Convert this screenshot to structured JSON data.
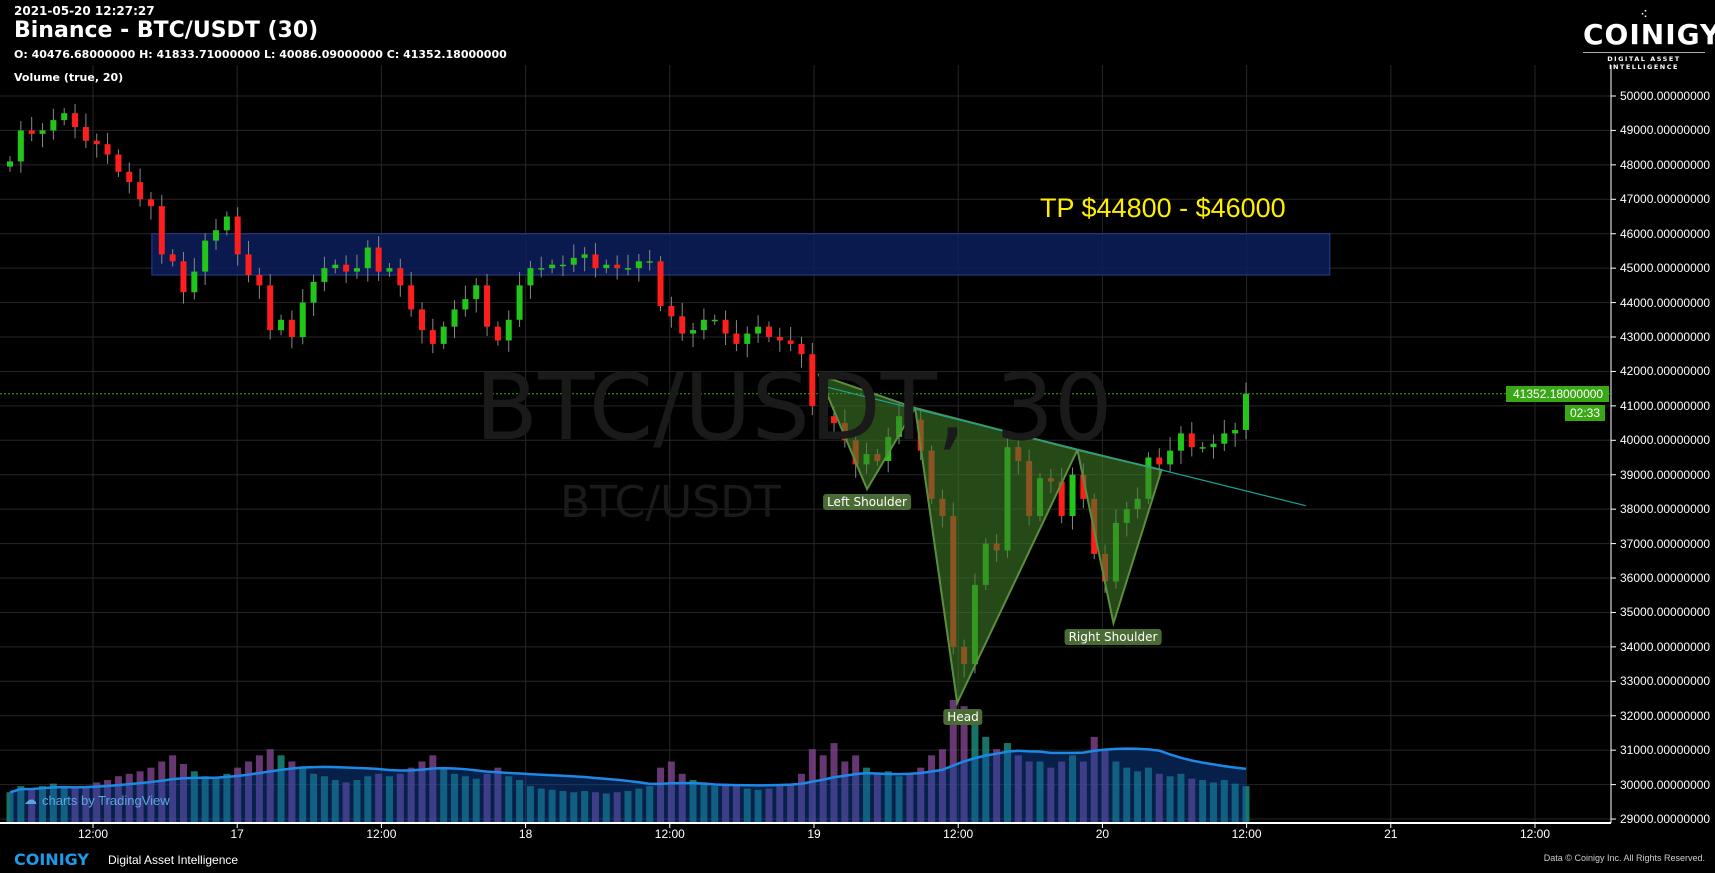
{
  "header": {
    "timestamp": "2021-05-20 12:27:27",
    "title": "Binance - BTC/USDT (30)",
    "ohlc": "O: 40476.68000000 H: 41833.71000000 L: 40086.09000000 C: 41352.18000000",
    "volume_indicator": "Volume (true, 20)"
  },
  "logo": {
    "name": "COINIGY",
    "tagline": "DIGITAL ASSET INTELLIGENCE"
  },
  "watermark": {
    "main": "BTC/USDT, 30",
    "sub": "BTC/USDT"
  },
  "price_axis": {
    "labels": [
      "50000.00000000",
      "49000.00000000",
      "48000.00000000",
      "47000.00000000",
      "46000.00000000",
      "45000.00000000",
      "44000.00000000",
      "43000.00000000",
      "42000.00000000",
      "41000.00000000",
      "40000.00000000",
      "39000.00000000",
      "38000.00000000",
      "37000.00000000",
      "36000.00000000",
      "35000.00000000",
      "34000.00000000",
      "33000.00000000",
      "32000.00000000",
      "31000.00000000",
      "30000.00000000",
      "29000.00000000"
    ],
    "current_price": "41352.18000000",
    "countdown": "02:33"
  },
  "time_axis": {
    "labels": [
      "12:00",
      "17",
      "12:00",
      "18",
      "12:00",
      "19",
      "12:00",
      "20",
      "12:00",
      "21",
      "12:00"
    ]
  },
  "colors": {
    "up": "#22c51a",
    "down": "#ff1e1e",
    "zone": "#0d1f5c",
    "pattern": "#3d7a26",
    "neckline": "#1aa39a",
    "tp_text": "#ffee00",
    "price_tag": "#3aa816",
    "volume_ma": "#1e88e5"
  },
  "annotations": {
    "tp_text": "TP $44800 - $46000",
    "zone": {
      "from": "2021-05-16 17:00",
      "to": "2021-05-20 19:00",
      "low": 44800,
      "high": 46000
    },
    "neckline": {
      "from": [
        "2021-05-19 00:30",
        41600
      ],
      "to": [
        "2021-05-20 17:00",
        38100
      ]
    },
    "left_shoulder": {
      "label": "Left Shoulder",
      "points": [
        [
          "2021-05-19 00:30",
          41900
        ],
        [
          "2021-05-19 04:30",
          38580
        ],
        [
          "2021-05-19 08:30",
          40940
        ]
      ]
    },
    "head": {
      "label": "Head",
      "points": [
        [
          "2021-05-19 08:30",
          40940
        ],
        [
          "2021-05-19 12:00",
          32370
        ],
        [
          "2021-05-19 22:00",
          39720
        ]
      ]
    },
    "right_shoulder": {
      "label": "Right Shoulder",
      "points": [
        [
          "2021-05-19 22:00",
          39720
        ],
        [
          "2021-05-20 01:00",
          34690
        ],
        [
          "2021-05-20 05:00",
          39140
        ]
      ]
    }
  },
  "chart_data": {
    "type": "candlestick",
    "symbol": "BTC/USDT",
    "interval": "30",
    "ylim": [
      29000,
      50000
    ],
    "closes": [
      48100,
      49000,
      48900,
      49000,
      49300,
      49500,
      49100,
      48700,
      48600,
      48300,
      47800,
      47500,
      47000,
      46800,
      45400,
      45200,
      44300,
      44900,
      45800,
      46100,
      46500,
      45400,
      44800,
      44500,
      43200,
      43500,
      43000,
      44000,
      44600,
      45000,
      45100,
      44900,
      45000,
      45600,
      44900,
      45000,
      44500,
      43800,
      43200,
      42800,
      43300,
      43800,
      44100,
      44500,
      43300,
      42900,
      43500,
      44500,
      45000,
      45000,
      45100,
      45100,
      45300,
      45400,
      45000,
      45100,
      45000,
      45000,
      45200,
      45200,
      43900,
      43600,
      43100,
      43200,
      43500,
      43500,
      43100,
      42800,
      43100,
      43300,
      43000,
      42900,
      42800,
      42500,
      41000,
      40700,
      40500,
      40000,
      39300,
      39600,
      39400,
      40100,
      40700,
      40600,
      39700,
      38300,
      37800,
      34000,
      33500,
      35800,
      37000,
      36800,
      39800,
      39400,
      37800,
      38900,
      38800,
      37800,
      39000,
      38300,
      36700,
      35900,
      37600,
      38000,
      38300,
      39500,
      39300,
      39700,
      40200,
      39800,
      39800,
      39900,
      40200,
      40300,
      41352
    ],
    "volume_relative": [
      0.25,
      0.3,
      0.28,
      0.3,
      0.32,
      0.3,
      0.28,
      0.3,
      0.33,
      0.35,
      0.38,
      0.4,
      0.42,
      0.45,
      0.5,
      0.55,
      0.48,
      0.42,
      0.38,
      0.36,
      0.4,
      0.45,
      0.5,
      0.55,
      0.6,
      0.55,
      0.5,
      0.45,
      0.4,
      0.38,
      0.35,
      0.33,
      0.35,
      0.38,
      0.4,
      0.38,
      0.4,
      0.45,
      0.5,
      0.55,
      0.45,
      0.4,
      0.38,
      0.36,
      0.4,
      0.45,
      0.38,
      0.35,
      0.3,
      0.28,
      0.27,
      0.26,
      0.25,
      0.26,
      0.25,
      0.24,
      0.25,
      0.26,
      0.28,
      0.3,
      0.45,
      0.5,
      0.4,
      0.35,
      0.33,
      0.3,
      0.32,
      0.3,
      0.28,
      0.27,
      0.28,
      0.3,
      0.32,
      0.4,
      0.6,
      0.55,
      0.65,
      0.5,
      0.55,
      0.45,
      0.4,
      0.42,
      0.38,
      0.4,
      0.45,
      0.55,
      0.6,
      1.0,
      0.95,
      0.8,
      0.7,
      0.6,
      0.65,
      0.55,
      0.5,
      0.5,
      0.45,
      0.5,
      0.55,
      0.5,
      0.7,
      0.6,
      0.5,
      0.45,
      0.42,
      0.45,
      0.4,
      0.38,
      0.4,
      0.36,
      0.35,
      0.33,
      0.35,
      0.32,
      0.3,
      0.4
    ]
  },
  "branding": {
    "tradingview": "charts by TradingView",
    "footer_logo": "COINIGY",
    "footer_tagline": "Digital Asset Intelligence",
    "copyright": "Data © Coinigy Inc. All Rights Reserved."
  }
}
